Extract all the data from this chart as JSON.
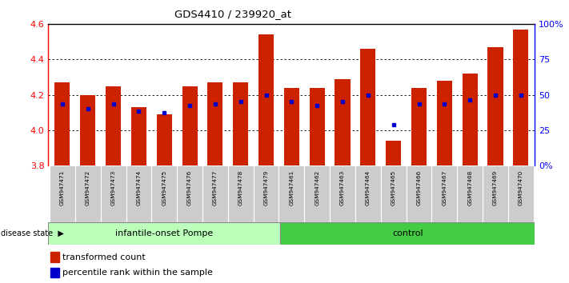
{
  "title": "GDS4410 / 239920_at",
  "samples": [
    "GSM947471",
    "GSM947472",
    "GSM947473",
    "GSM947474",
    "GSM947475",
    "GSM947476",
    "GSM947477",
    "GSM947478",
    "GSM947479",
    "GSM947461",
    "GSM947462",
    "GSM947463",
    "GSM947464",
    "GSM947465",
    "GSM947466",
    "GSM947467",
    "GSM947468",
    "GSM947469",
    "GSM947470"
  ],
  "red_values": [
    4.27,
    4.2,
    4.25,
    4.13,
    4.09,
    4.25,
    4.27,
    4.27,
    4.54,
    4.24,
    4.24,
    4.29,
    4.46,
    3.94,
    4.24,
    4.28,
    4.32,
    4.47,
    4.57
  ],
  "blue_values": [
    4.15,
    4.12,
    4.15,
    4.11,
    4.1,
    4.14,
    4.15,
    4.16,
    4.2,
    4.16,
    4.14,
    4.16,
    4.2,
    4.03,
    4.15,
    4.15,
    4.17,
    4.2,
    4.2
  ],
  "group1_label": "infantile-onset Pompe",
  "group2_label": "control",
  "group1_count": 9,
  "group2_count": 10,
  "ymin": 3.8,
  "ymax": 4.6,
  "yticks": [
    3.8,
    4.0,
    4.2,
    4.4,
    4.6
  ],
  "y2ticks": [
    0,
    25,
    50,
    75,
    100
  ],
  "bar_color": "#cc2200",
  "dot_color": "#0000cc",
  "group1_bg": "#bbffbb",
  "group2_bg": "#44cc44",
  "label_bg": "#cccccc",
  "bar_width": 0.6
}
